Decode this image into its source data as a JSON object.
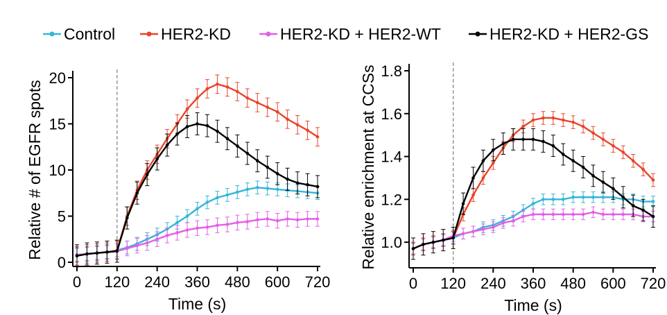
{
  "legend": [
    {
      "label": "Control",
      "color": "#35b6d8"
    },
    {
      "label": "HER2-KD",
      "color": "#e8442b"
    },
    {
      "label": "HER2-KD + HER2-WT",
      "color": "#e45ee6"
    },
    {
      "label": "HER2-KD + HER2-GS",
      "color": "#000000"
    }
  ],
  "chart_data": [
    {
      "type": "line",
      "title": "",
      "xlabel": "Time (s)",
      "ylabel": "Relative # of EGFR spots",
      "xlim": [
        0,
        720
      ],
      "ylim": [
        0,
        20
      ],
      "xticks": [
        0,
        120,
        240,
        360,
        480,
        600,
        720
      ],
      "yticks": [
        0,
        5,
        10,
        15,
        20
      ],
      "xtick_labels": [
        "0",
        "120",
        "240",
        "360",
        "480",
        "600",
        "720"
      ],
      "ytick_labels": [
        "0",
        "5",
        "10",
        "15",
        "20"
      ],
      "marker_line_x": 120,
      "error_bars": true,
      "series": [
        {
          "name": "Control",
          "color": "#35b6d8",
          "x": [
            0,
            30,
            60,
            90,
            120,
            150,
            180,
            210,
            240,
            270,
            300,
            330,
            360,
            390,
            420,
            450,
            480,
            510,
            540,
            570,
            600,
            630,
            660,
            690,
            720
          ],
          "y": [
            0.8,
            0.9,
            1.0,
            1.1,
            1.3,
            1.6,
            2.0,
            2.5,
            3.0,
            3.6,
            4.3,
            5.0,
            5.8,
            6.5,
            7.0,
            7.3,
            7.6,
            7.9,
            8.1,
            8.0,
            7.9,
            7.8,
            7.7,
            7.6,
            7.5
          ],
          "err": 0.7
        },
        {
          "name": "HER2-KD",
          "color": "#e8442b",
          "x": [
            0,
            30,
            60,
            90,
            120,
            150,
            180,
            210,
            240,
            270,
            300,
            330,
            360,
            390,
            420,
            450,
            480,
            510,
            540,
            570,
            600,
            630,
            660,
            690,
            720
          ],
          "y": [
            0.7,
            0.9,
            1.0,
            1.1,
            1.3,
            5.0,
            7.8,
            10.0,
            11.7,
            13.4,
            15.0,
            16.6,
            17.8,
            18.8,
            19.3,
            19.0,
            18.5,
            17.8,
            17.3,
            16.8,
            16.3,
            15.5,
            14.9,
            14.3,
            13.6
          ],
          "err": 1.0
        },
        {
          "name": "HER2-KD + HER2-WT",
          "color": "#e45ee6",
          "x": [
            0,
            30,
            60,
            90,
            120,
            150,
            180,
            210,
            240,
            270,
            300,
            330,
            360,
            390,
            420,
            450,
            480,
            510,
            540,
            570,
            600,
            630,
            660,
            690,
            720
          ],
          "y": [
            0.8,
            0.9,
            1.0,
            1.1,
            1.2,
            1.5,
            1.8,
            2.1,
            2.5,
            2.9,
            3.2,
            3.5,
            3.7,
            3.8,
            4.0,
            4.1,
            4.3,
            4.4,
            4.6,
            4.7,
            4.5,
            4.7,
            4.6,
            4.7,
            4.7
          ],
          "err": 0.8
        },
        {
          "name": "HER2-KD + HER2-GS",
          "color": "#000000",
          "x": [
            0,
            30,
            60,
            90,
            120,
            150,
            180,
            210,
            240,
            270,
            300,
            330,
            360,
            390,
            420,
            450,
            480,
            510,
            540,
            570,
            600,
            630,
            660,
            690,
            720
          ],
          "y": [
            0.7,
            0.9,
            1.0,
            1.1,
            1.2,
            4.8,
            7.5,
            9.5,
            11.2,
            12.7,
            13.9,
            14.7,
            15.0,
            14.8,
            14.2,
            13.4,
            12.6,
            11.8,
            11.0,
            10.3,
            9.6,
            9.0,
            8.6,
            8.4,
            8.2
          ],
          "err": 1.2
        }
      ]
    },
    {
      "type": "line",
      "title": "",
      "xlabel": "Time (s)",
      "ylabel": "Relative enrichment at CCSs",
      "xlim": [
        0,
        720
      ],
      "ylim": [
        0.9,
        1.8
      ],
      "xticks": [
        0,
        120,
        240,
        360,
        480,
        600,
        720
      ],
      "yticks": [
        1.0,
        1.2,
        1.4,
        1.6,
        1.8
      ],
      "xtick_labels": [
        "0",
        "120",
        "240",
        "360",
        "480",
        "600",
        "720"
      ],
      "ytick_labels": [
        "1.0",
        "1.2",
        "1.4",
        "1.6",
        "1.8"
      ],
      "marker_line_x": 120,
      "error_bars": true,
      "series": [
        {
          "name": "Control",
          "color": "#35b6d8",
          "x": [
            0,
            30,
            60,
            90,
            120,
            150,
            180,
            210,
            240,
            270,
            300,
            330,
            360,
            390,
            420,
            450,
            480,
            510,
            540,
            570,
            600,
            630,
            660,
            690,
            720
          ],
          "y": [
            0.97,
            0.99,
            1.0,
            1.01,
            1.02,
            1.04,
            1.05,
            1.07,
            1.08,
            1.1,
            1.12,
            1.15,
            1.18,
            1.2,
            1.2,
            1.2,
            1.21,
            1.21,
            1.21,
            1.21,
            1.21,
            1.2,
            1.2,
            1.19,
            1.19
          ],
          "err": 0.025
        },
        {
          "name": "HER2-KD",
          "color": "#e8442b",
          "x": [
            0,
            30,
            60,
            90,
            120,
            150,
            180,
            210,
            240,
            270,
            300,
            330,
            360,
            390,
            420,
            450,
            480,
            510,
            540,
            570,
            600,
            630,
            660,
            690,
            720
          ],
          "y": [
            0.97,
            0.99,
            1.0,
            1.01,
            1.02,
            1.13,
            1.22,
            1.3,
            1.37,
            1.44,
            1.5,
            1.54,
            1.57,
            1.58,
            1.58,
            1.57,
            1.56,
            1.54,
            1.51,
            1.48,
            1.45,
            1.42,
            1.38,
            1.34,
            1.29
          ],
          "err": 0.03
        },
        {
          "name": "HER2-KD + HER2-WT",
          "color": "#e45ee6",
          "x": [
            0,
            30,
            60,
            90,
            120,
            150,
            180,
            210,
            240,
            270,
            300,
            330,
            360,
            390,
            420,
            450,
            480,
            510,
            540,
            570,
            600,
            630,
            660,
            690,
            720
          ],
          "y": [
            0.97,
            0.99,
            1.0,
            1.01,
            1.03,
            1.04,
            1.05,
            1.06,
            1.07,
            1.09,
            1.1,
            1.12,
            1.13,
            1.13,
            1.13,
            1.13,
            1.13,
            1.13,
            1.14,
            1.13,
            1.13,
            1.13,
            1.13,
            1.12,
            1.12
          ],
          "err": 0.025
        },
        {
          "name": "HER2-KD + HER2-GS",
          "color": "#000000",
          "x": [
            0,
            30,
            60,
            90,
            120,
            150,
            180,
            210,
            240,
            270,
            300,
            330,
            360,
            390,
            420,
            450,
            480,
            510,
            540,
            570,
            600,
            630,
            660,
            690,
            720
          ],
          "y": [
            0.97,
            0.99,
            1.0,
            1.01,
            1.02,
            1.18,
            1.3,
            1.38,
            1.43,
            1.46,
            1.48,
            1.48,
            1.48,
            1.47,
            1.45,
            1.41,
            1.38,
            1.35,
            1.31,
            1.28,
            1.25,
            1.21,
            1.17,
            1.15,
            1.12
          ],
          "err": 0.05
        }
      ]
    }
  ]
}
